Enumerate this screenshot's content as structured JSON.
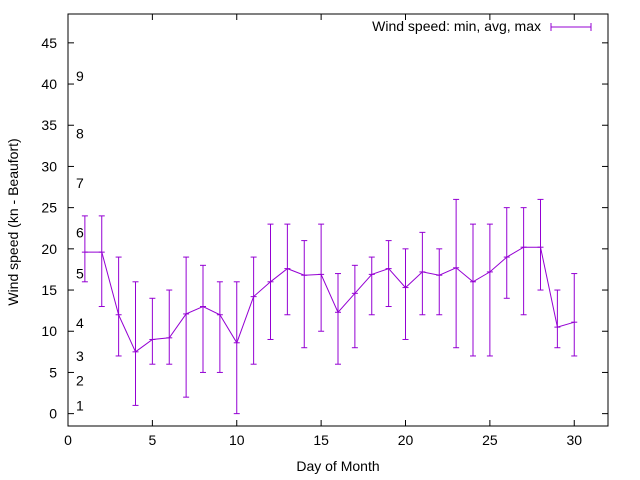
{
  "chart_data": {
    "type": "line",
    "title": "",
    "xlabel": "Day of Month",
    "ylabel": "Wind speed (kn - Beaufort)",
    "xlim": [
      0,
      32
    ],
    "ylim": [
      -1.5,
      48.5
    ],
    "xticks": [
      0,
      5,
      10,
      15,
      20,
      25,
      30
    ],
    "yticks": [
      0,
      5,
      10,
      15,
      20,
      25,
      30,
      35,
      40,
      45
    ],
    "beaufort_labels": [
      {
        "label": "1",
        "y": 1
      },
      {
        "label": "2",
        "y": 4
      },
      {
        "label": "3",
        "y": 7
      },
      {
        "label": "4",
        "y": 11
      },
      {
        "label": "5",
        "y": 17
      },
      {
        "label": "6",
        "y": 22
      },
      {
        "label": "7",
        "y": 28
      },
      {
        "label": "8",
        "y": 34
      },
      {
        "label": "9",
        "y": 41
      }
    ],
    "legend_position": "top-right",
    "grid": false,
    "color": "#9400d3",
    "series": [
      {
        "name": "Wind speed: min, avg, max",
        "x": [
          1,
          2,
          3,
          4,
          5,
          6,
          7,
          8,
          9,
          10,
          11,
          12,
          13,
          14,
          15,
          16,
          17,
          18,
          19,
          20,
          21,
          22,
          23,
          24,
          25,
          26,
          27,
          28,
          29,
          30
        ],
        "avg": [
          19.6,
          19.6,
          12.0,
          7.5,
          9.0,
          9.2,
          12.1,
          13.0,
          12.0,
          8.6,
          14.2,
          16.0,
          17.6,
          16.8,
          16.9,
          12.3,
          14.6,
          16.9,
          17.6,
          15.3,
          17.2,
          16.8,
          17.7,
          16.0,
          17.2,
          19.0,
          20.2,
          20.2,
          10.5,
          11.1
        ],
        "min": [
          16,
          13,
          7,
          1,
          6,
          6,
          2,
          5,
          5,
          0,
          6,
          9,
          12,
          8,
          10,
          6,
          8,
          12,
          13,
          9,
          12,
          12,
          8,
          7,
          7,
          14,
          12,
          15,
          8,
          7
        ],
        "max": [
          24,
          24,
          19,
          16,
          14,
          15,
          19,
          18,
          16,
          16,
          19,
          23,
          23,
          21,
          23,
          17,
          18,
          19,
          21,
          20,
          22,
          20,
          26,
          23,
          23,
          25,
          25,
          26,
          15,
          17
        ]
      }
    ]
  }
}
